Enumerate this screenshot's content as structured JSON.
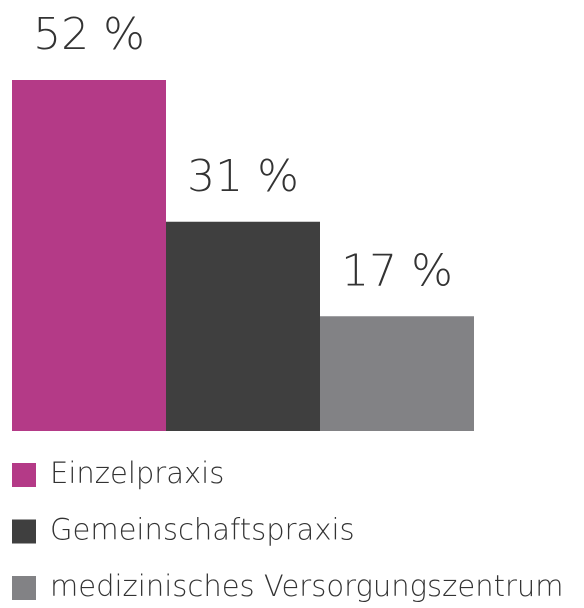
{
  "chart_data": {
    "type": "bar",
    "categories": [
      "Einzelpraxis",
      "Gemeinschaftspraxis",
      "medizinisches Versorgungszentrum"
    ],
    "values": [
      52,
      31,
      17
    ],
    "value_labels": [
      "52 %",
      "31 %",
      "17 %"
    ],
    "colors": [
      "#b43a87",
      "#3f3f3f",
      "#828285"
    ]
  }
}
